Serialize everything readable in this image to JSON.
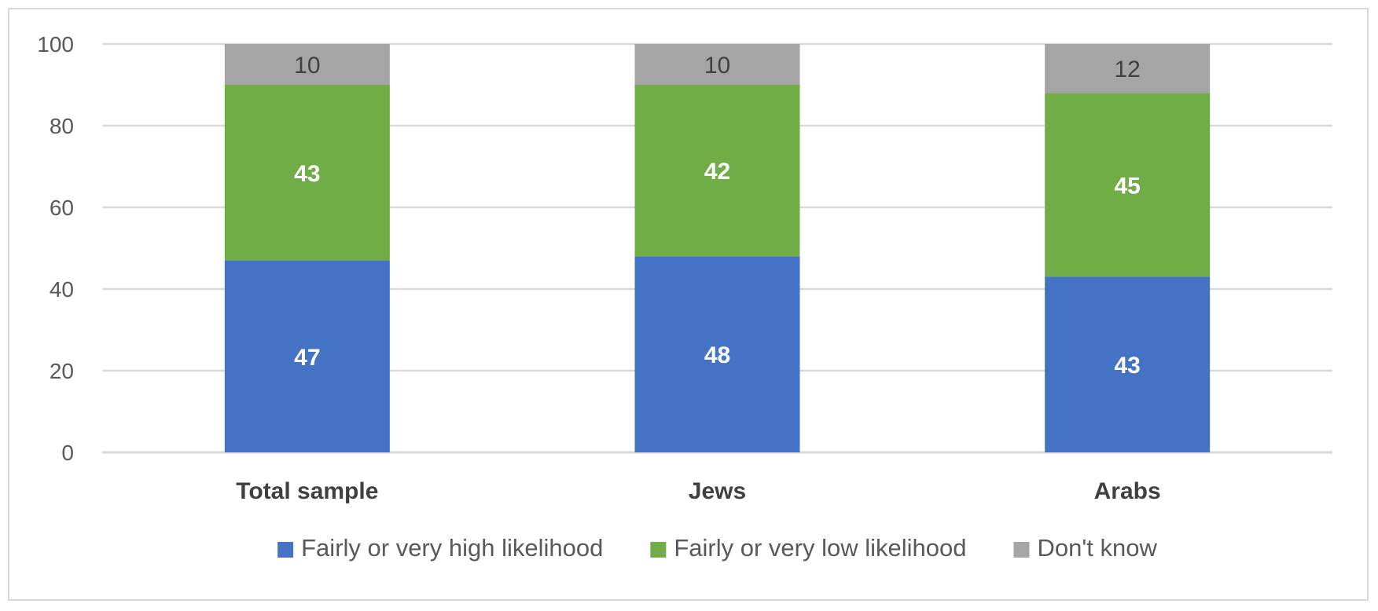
{
  "chart_data": {
    "type": "bar",
    "stacked": true,
    "categories": [
      "Total sample",
      "Jews",
      "Arabs"
    ],
    "series": [
      {
        "name": "Fairly or very high likelihood",
        "color": "#4472c4",
        "values": [
          47,
          48,
          43
        ],
        "label_color": "#ffffff",
        "label_bold": true
      },
      {
        "name": "Fairly or very low likelihood",
        "color": "#70ad47",
        "values": [
          43,
          42,
          45
        ],
        "label_color": "#ffffff",
        "label_bold": true
      },
      {
        "name": "Don't know",
        "color": "#a5a5a5",
        "values": [
          10,
          10,
          12
        ],
        "label_color": "#404040",
        "label_bold": false
      }
    ],
    "ylim": [
      0,
      100
    ],
    "yticks": [
      0,
      20,
      40,
      60,
      80,
      100
    ],
    "grid": true,
    "legend_position": "bottom",
    "title": "",
    "xlabel": "",
    "ylabel": ""
  }
}
